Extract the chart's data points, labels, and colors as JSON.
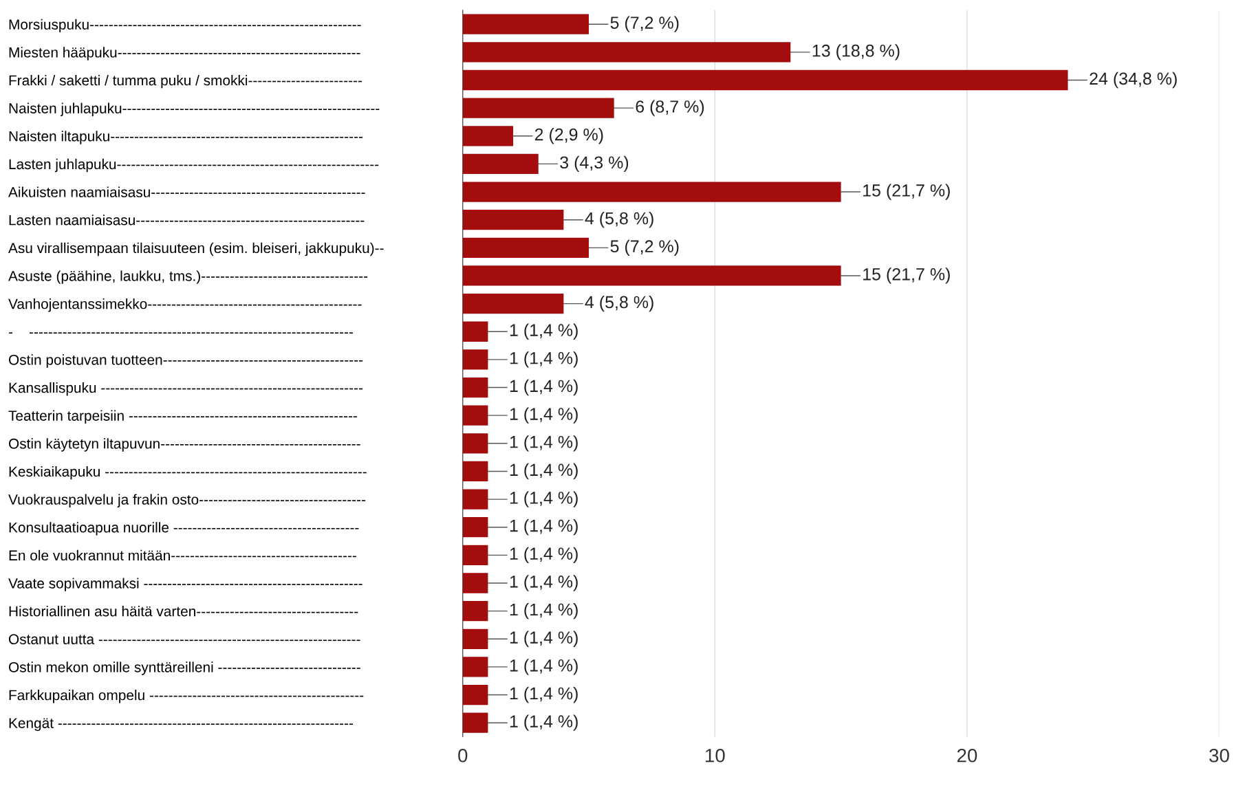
{
  "chart_data": {
    "type": "bar",
    "orientation": "horizontal",
    "categories": [
      "Morsiuspuku---------------------------------------------------------",
      "Miesten hääpuku---------------------------------------------------",
      "Frakki / saketti / tumma puku / smokki------------------------",
      "Naisten juhlapuku------------------------------------------------------",
      "Naisten iltapuku-----------------------------------------------------",
      "Lasten juhlapuku-------------------------------------------------------",
      "Aikuisten naamiaisasu---------------------------------------------",
      "Lasten naamiaisasu------------------------------------------------",
      "Asu virallisempaan tilaisuuteen (esim. bleiseri, jakkupuku)--",
      "Asuste (päähine, laukku, tms.)-----------------------------------",
      "Vanhojentanssimekko---------------------------------------------",
      "-    --------------------------------------------------------------------",
      "Ostin poistuvan tuotteen------------------------------------------",
      "Kansallispuku -------------------------------------------------------",
      "Teatterin tarpeisiin ------------------------------------------------",
      "Ostin käytetyn iltapuvun------------------------------------------",
      "Keskiaikapuku -------------------------------------------------------",
      "Vuokrauspalvelu ja frakin osto-----------------------------------",
      "Konsultaatioapua nuorille ---------------------------------------",
      "En ole vuokrannut mitään---------------------------------------",
      "Vaate sopivammaksi ----------------------------------------------",
      "Historiallinen asu häitä varten----------------------------------",
      "Ostanut uutta -------------------------------------------------------",
      "Ostin mekon omille synttäreilleni ------------------------------",
      "Farkkupaikan ompelu ---------------------------------------------",
      "Kengät --------------------------------------------------------------"
    ],
    "values": [
      5,
      13,
      24,
      6,
      2,
      3,
      15,
      4,
      5,
      15,
      4,
      1,
      1,
      1,
      1,
      1,
      1,
      1,
      1,
      1,
      1,
      1,
      1,
      1,
      1,
      1
    ],
    "value_labels": [
      "5 (7,2 %)",
      "13 (18,8 %)",
      "24 (34,8 %)",
      "6 (8,7 %)",
      "2 (2,9 %)",
      "3 (4,3 %)",
      "15 (21,7 %)",
      "4 (5,8 %)",
      "5 (7,2 %)",
      "15 (21,7 %)",
      "4 (5,8 %)",
      "1 (1,4 %)",
      "1 (1,4 %)",
      "1 (1,4 %)",
      "1 (1,4 %)",
      "1 (1,4 %)",
      "1 (1,4 %)",
      "1 (1,4 %)",
      "1 (1,4 %)",
      "1 (1,4 %)",
      "1 (1,4 %)",
      "1 (1,4 %)",
      "1 (1,4 %)",
      "1 (1,4 %)",
      "1 (1,4 %)",
      "1 (1,4 %)"
    ],
    "color": "#a30d0d",
    "xlim": [
      0,
      30
    ],
    "xticks": [
      0,
      10,
      20,
      30
    ],
    "grid": "x"
  }
}
